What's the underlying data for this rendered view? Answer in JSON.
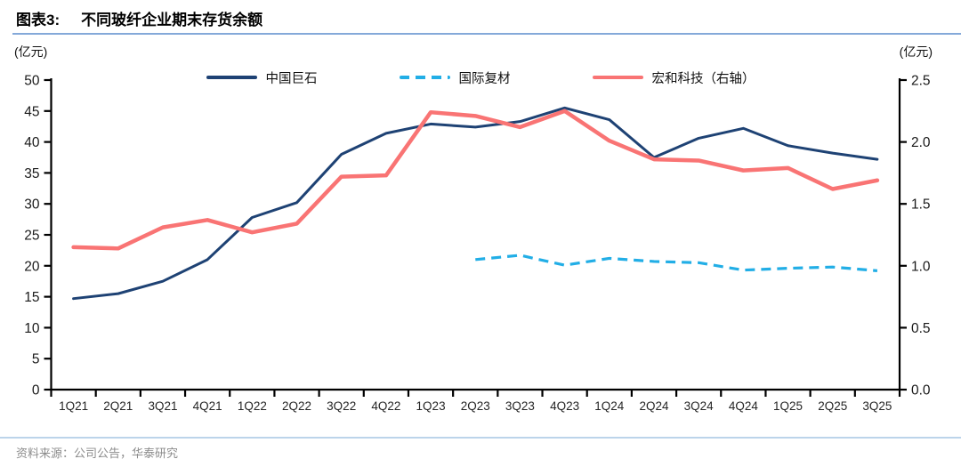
{
  "header": {
    "tag": "图表3:",
    "title": "不同玻纤企业期末存货余额"
  },
  "footer": {
    "source": "资料来源：公司公告，华泰研究"
  },
  "axes": {
    "left_unit": "(亿元)",
    "right_unit": "(亿元)",
    "left_ticks": [
      0,
      5,
      10,
      15,
      20,
      25,
      30,
      35,
      40,
      45,
      50
    ],
    "right_ticks": [
      "0.0",
      "0.5",
      "1.0",
      "1.5",
      "2.0",
      "2.5"
    ]
  },
  "colors": {
    "navy": "#1e4274",
    "cyan": "#22aee6",
    "red": "#f97474",
    "header_rule": "#84a9d9",
    "footer_rule": "#bcd4ea",
    "axis": "#000000",
    "tick_text": "#1a1a1a"
  },
  "chart_data": {
    "type": "line",
    "title": "不同玻纤企业期末存货余额",
    "left_ylabel": "(亿元)",
    "right_ylabel": "(亿元)",
    "left_ylim": [
      0,
      50
    ],
    "right_ylim": [
      0,
      2.5
    ],
    "grid": false,
    "legend_position": "top",
    "categories": [
      "1Q21",
      "2Q21",
      "3Q21",
      "4Q21",
      "1Q22",
      "2Q22",
      "3Q22",
      "4Q22",
      "1Q23",
      "2Q23",
      "3Q23",
      "4Q23",
      "1Q24",
      "2Q24",
      "3Q24",
      "4Q24",
      "1Q25",
      "2Q25",
      "3Q25"
    ],
    "series": [
      {
        "name": "中国巨石",
        "axis": "left",
        "color": "#1e4274",
        "style": "solid",
        "width": 3,
        "values": [
          14.7,
          15.5,
          17.5,
          21.0,
          27.8,
          30.2,
          38.0,
          41.4,
          42.9,
          42.4,
          43.3,
          45.5,
          43.6,
          37.5,
          40.6,
          42.2,
          39.4,
          38.2,
          37.2
        ]
      },
      {
        "name": "国际复材",
        "axis": "left",
        "color": "#22aee6",
        "style": "dashed",
        "width": 3.2,
        "values": [
          null,
          null,
          null,
          null,
          null,
          null,
          null,
          null,
          null,
          21.0,
          21.7,
          20.1,
          21.2,
          20.7,
          20.5,
          19.3,
          19.6,
          19.8,
          19.2
        ]
      },
      {
        "name": "宏和科技（右轴）",
        "axis": "right",
        "color": "#f97474",
        "style": "solid",
        "width": 4.5,
        "values": [
          1.15,
          1.14,
          1.31,
          1.37,
          1.27,
          1.34,
          1.72,
          1.73,
          2.24,
          2.21,
          2.12,
          2.25,
          2.01,
          1.86,
          1.85,
          1.77,
          1.79,
          1.62,
          1.69
        ]
      }
    ]
  }
}
